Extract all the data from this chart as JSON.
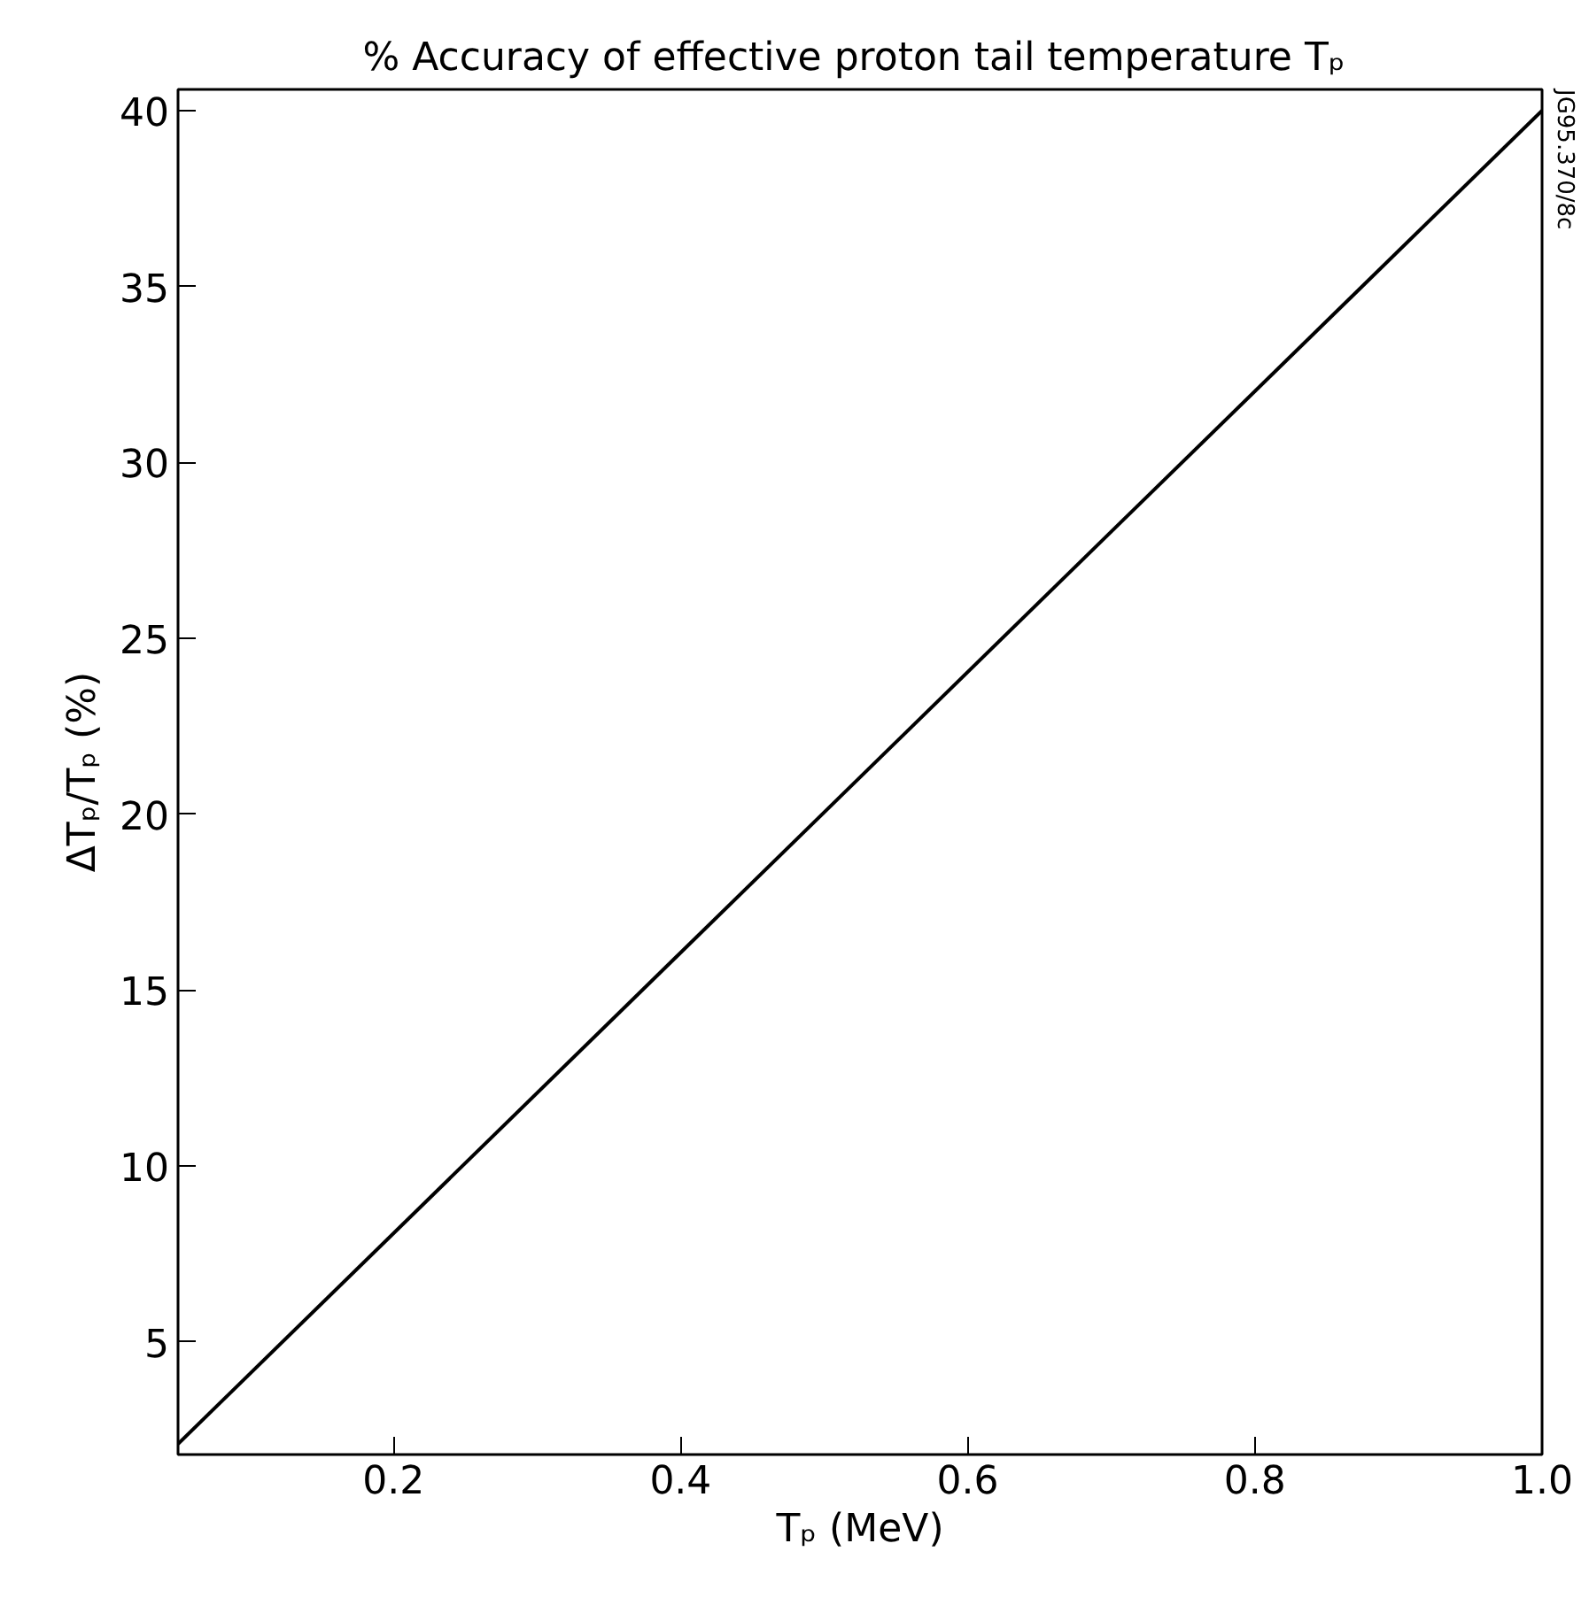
{
  "chart_data": {
    "type": "line",
    "title": "% Accuracy of effective proton tail temperature  Tₚ",
    "xlabel": "Tₚ (MeV)",
    "ylabel": "ΔTₚ/Tₚ (%)",
    "x": [
      0.05,
      1.0
    ],
    "series": [
      {
        "color": "#000000",
        "values": [
          2.1,
          40.0
        ]
      }
    ],
    "xlim": [
      0.05,
      1.0
    ],
    "xticks": [
      0.2,
      0.4,
      0.6,
      0.8,
      {
        "value": 1.0,
        "label": "1.0"
      }
    ],
    "ylim": [
      1.8,
      40.6
    ],
    "yticks": [
      5,
      10,
      15,
      20,
      25,
      30,
      35,
      40
    ],
    "grid": false,
    "marker": "none",
    "line_style": "solid",
    "annotations": [
      "JG95.370/8c"
    ]
  }
}
